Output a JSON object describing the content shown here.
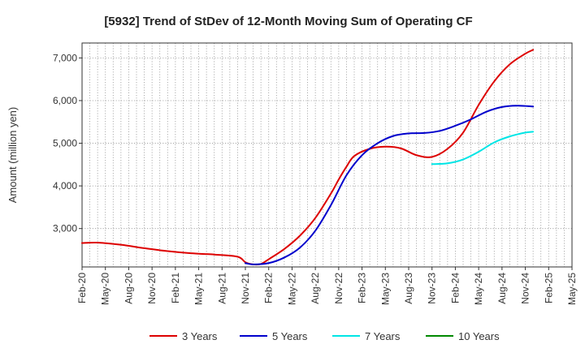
{
  "chart_data": {
    "type": "line",
    "title": "[5932]  Trend of StDev of 12-Month Moving Sum of Operating CF",
    "ylabel": "Amount (million yen)",
    "xlabel": "",
    "x_ticks": [
      "Feb-20",
      "May-20",
      "Aug-20",
      "Nov-20",
      "Feb-21",
      "May-21",
      "Aug-21",
      "Nov-21",
      "Feb-22",
      "May-22",
      "Aug-22",
      "Nov-22",
      "Feb-23",
      "May-23",
      "Aug-23",
      "Nov-23",
      "Feb-24",
      "May-24",
      "Aug-24",
      "Nov-24",
      "Feb-25",
      "May-25"
    ],
    "x_range": [
      "2020-02",
      "2025-05"
    ],
    "ylim": [
      2100,
      7350
    ],
    "y_ticks": [
      3000,
      4000,
      5000,
      6000,
      7000
    ],
    "y_tick_labels": [
      "3,000",
      "4,000",
      "5,000",
      "6,000",
      "7,000"
    ],
    "grid": true,
    "legend_position": "bottom",
    "series": [
      {
        "name": "3 Years",
        "color": "#dd0000",
        "points": [
          [
            "2020-02",
            2660
          ],
          [
            "2020-04",
            2670
          ],
          [
            "2020-07",
            2620
          ],
          [
            "2020-10",
            2540
          ],
          [
            "2021-01",
            2470
          ],
          [
            "2021-04",
            2420
          ],
          [
            "2021-07",
            2390
          ],
          [
            "2021-10",
            2340
          ],
          [
            "2021-11",
            2210
          ],
          [
            "2021-12",
            2160
          ],
          [
            "2022-01",
            2170
          ],
          [
            "2022-02",
            2280
          ],
          [
            "2022-04",
            2520
          ],
          [
            "2022-06",
            2830
          ],
          [
            "2022-08",
            3250
          ],
          [
            "2022-10",
            3820
          ],
          [
            "2022-11",
            4150
          ],
          [
            "2022-12",
            4450
          ],
          [
            "2023-01",
            4700
          ],
          [
            "2023-03",
            4870
          ],
          [
            "2023-05",
            4920
          ],
          [
            "2023-07",
            4880
          ],
          [
            "2023-09",
            4720
          ],
          [
            "2023-11",
            4680
          ],
          [
            "2024-01",
            4870
          ],
          [
            "2024-03",
            5250
          ],
          [
            "2024-05",
            5900
          ],
          [
            "2024-07",
            6450
          ],
          [
            "2024-09",
            6850
          ],
          [
            "2024-11",
            7100
          ],
          [
            "2024-12",
            7190
          ]
        ]
      },
      {
        "name": "5 Years",
        "color": "#0000cc",
        "points": [
          [
            "2021-11",
            2190
          ],
          [
            "2021-12",
            2160
          ],
          [
            "2022-02",
            2190
          ],
          [
            "2022-04",
            2320
          ],
          [
            "2022-06",
            2550
          ],
          [
            "2022-08",
            2950
          ],
          [
            "2022-10",
            3550
          ],
          [
            "2022-12",
            4250
          ],
          [
            "2023-02",
            4720
          ],
          [
            "2023-04",
            5000
          ],
          [
            "2023-06",
            5170
          ],
          [
            "2023-08",
            5230
          ],
          [
            "2023-10",
            5240
          ],
          [
            "2023-12",
            5290
          ],
          [
            "2024-02",
            5410
          ],
          [
            "2024-04",
            5560
          ],
          [
            "2024-06",
            5740
          ],
          [
            "2024-08",
            5850
          ],
          [
            "2024-10",
            5880
          ],
          [
            "2024-12",
            5860
          ]
        ]
      },
      {
        "name": "7 Years",
        "color": "#00e5e5",
        "points": [
          [
            "2023-11",
            4510
          ],
          [
            "2024-01",
            4530
          ],
          [
            "2024-03",
            4620
          ],
          [
            "2024-05",
            4800
          ],
          [
            "2024-07",
            5020
          ],
          [
            "2024-09",
            5160
          ],
          [
            "2024-11",
            5250
          ],
          [
            "2024-12",
            5270
          ]
        ]
      },
      {
        "name": "10 Years",
        "color": "#008800",
        "points": []
      }
    ]
  }
}
